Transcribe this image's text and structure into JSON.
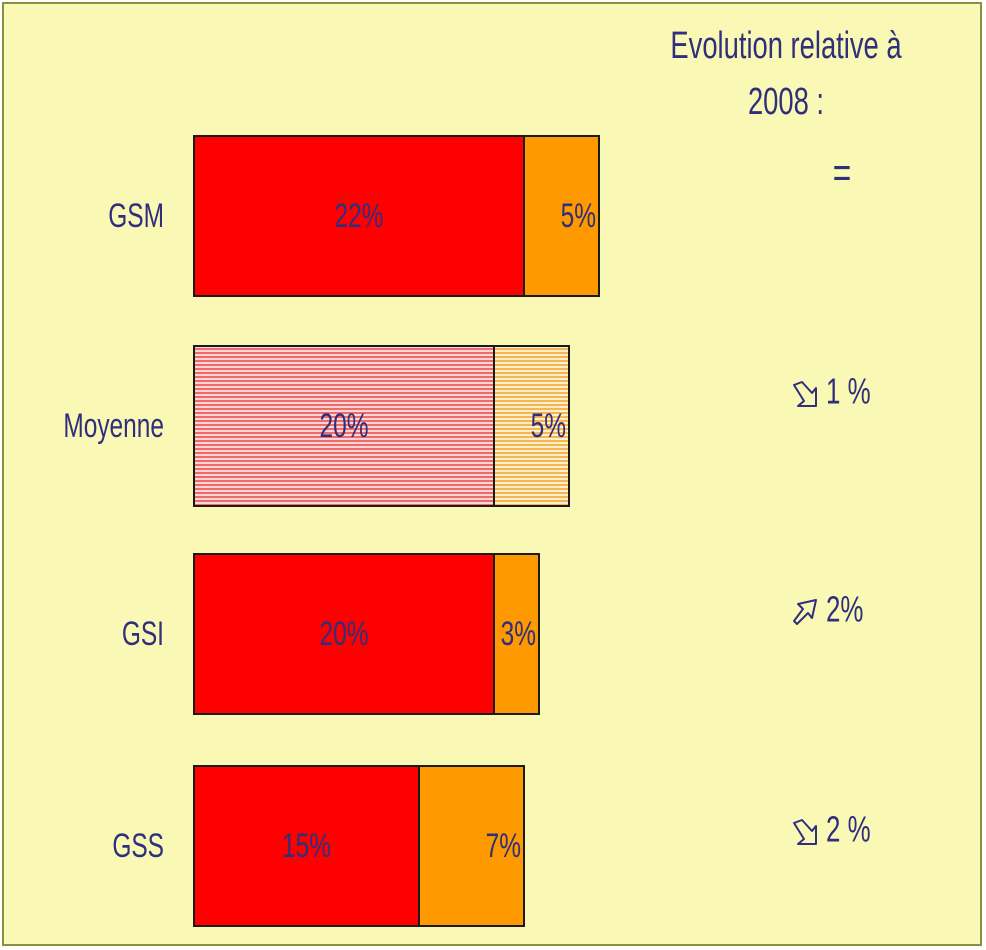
{
  "chart_data": {
    "type": "bar",
    "orientation": "horizontal",
    "stacked": true,
    "categories": [
      "GSM",
      "Moyenne",
      "GSI",
      "GSS"
    ],
    "series": [
      {
        "values": [
          22,
          20,
          20,
          15
        ],
        "labels": [
          "22%",
          "20%",
          "20%",
          "15%"
        ]
      },
      {
        "values": [
          5,
          5,
          3,
          7
        ],
        "labels": [
          "5%",
          "5%",
          "3%",
          "7%"
        ]
      }
    ],
    "highlight_category": "Moyenne",
    "colors": {
      "series_1": "#ff0000",
      "series_2": "#ff9900",
      "series_1_hatched": "#f28a8a",
      "series_2_hatched": "#f5c77a",
      "background": "#f9f9b5",
      "border": "#8e8e40",
      "text": "#2f2f7c"
    },
    "grid": false,
    "legend": "none",
    "annotations": {
      "title": "Evolution relative à 2008 :",
      "items": [
        {
          "category": "GSM",
          "icon": "equal-sign",
          "text": "="
        },
        {
          "category": "Moyenne",
          "icon": "arrow-down-right-icon",
          "text": "1 %"
        },
        {
          "category": "GSI",
          "icon": "arrow-up-right-icon",
          "text": "2%"
        },
        {
          "category": "GSS",
          "icon": "arrow-down-right-icon",
          "text": "2 %"
        }
      ]
    }
  }
}
